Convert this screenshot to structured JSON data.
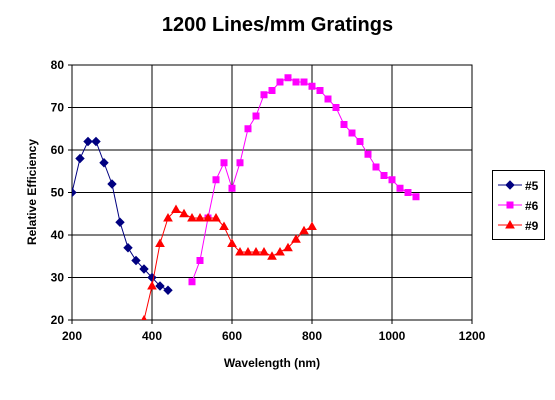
{
  "chart_data": {
    "type": "line",
    "title": "1200 Lines/mm Gratings",
    "xlabel": "Wavelength (nm)",
    "ylabel": "Relative Efficiency",
    "xlim": [
      200,
      1200
    ],
    "ylim": [
      20,
      80
    ],
    "x_ticks": [
      "200",
      "400",
      "600",
      "800",
      "1000",
      "1200"
    ],
    "y_ticks": [
      "20",
      "30",
      "40",
      "50",
      "60",
      "70",
      "80"
    ],
    "grid": "horizontal and vertical major gridlines",
    "legend_position": "right",
    "series": [
      {
        "name": "#5",
        "color": "#000080",
        "marker": "diamond",
        "x": [
          200,
          220,
          240,
          260,
          280,
          300,
          320,
          340,
          360,
          380,
          400,
          420,
          440
        ],
        "y": [
          50,
          58,
          62,
          62,
          57,
          52,
          43,
          37,
          34,
          32,
          30,
          28,
          27
        ]
      },
      {
        "name": "#6",
        "color": "#FF00FF",
        "marker": "square",
        "x": [
          500,
          520,
          540,
          560,
          580,
          600,
          620,
          640,
          660,
          680,
          700,
          720,
          740,
          760,
          780,
          800,
          820,
          840,
          860,
          880,
          900,
          920,
          940,
          960,
          980,
          1000,
          1020,
          1040,
          1060
        ],
        "y": [
          29,
          34,
          44,
          53,
          57,
          51,
          57,
          65,
          68,
          73,
          74,
          76,
          77,
          76,
          76,
          75,
          74,
          72,
          70,
          66,
          64,
          62,
          59,
          56,
          54,
          53,
          51,
          50,
          49
        ]
      },
      {
        "name": "#9",
        "color": "#FF0000",
        "marker": "triangle",
        "x": [
          380,
          400,
          420,
          440,
          460,
          480,
          500,
          520,
          540,
          560,
          580,
          600,
          620,
          640,
          660,
          680,
          700,
          720,
          740,
          760,
          780,
          800
        ],
        "y": [
          20,
          28,
          38,
          44,
          46,
          45,
          44,
          44,
          44,
          44,
          42,
          38,
          36,
          36,
          36,
          36,
          35,
          36,
          37,
          39,
          41,
          42
        ]
      }
    ]
  }
}
